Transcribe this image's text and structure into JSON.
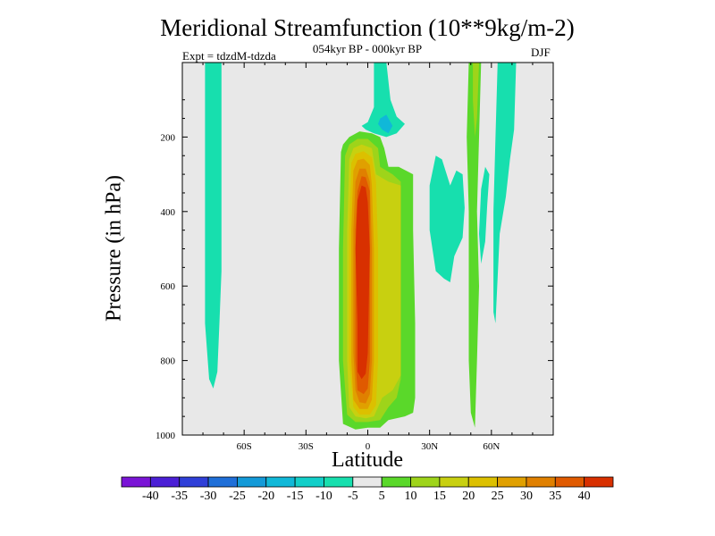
{
  "chart_data": {
    "type": "contour",
    "title": "Meridional Streamfunction (10**9kg/m-2)",
    "subtitle": "054kyr BP - 000kyr BP",
    "left_annotation": "Expt = tdzdM-tdzda",
    "right_annotation": "DJF",
    "xlabel": "Latitude",
    "ylabel": "Pressure (in hPa)",
    "xlim": [
      -90,
      90
    ],
    "ylim": [
      1000,
      0
    ],
    "x_ticks": [
      {
        "value": -60,
        "label": "60S"
      },
      {
        "value": -30,
        "label": "30S"
      },
      {
        "value": 0,
        "label": "0"
      },
      {
        "value": 30,
        "label": "30N"
      },
      {
        "value": 60,
        "label": "60N"
      }
    ],
    "y_ticks": [
      {
        "value": 200,
        "label": "200"
      },
      {
        "value": 400,
        "label": "400"
      },
      {
        "value": 600,
        "label": "600"
      },
      {
        "value": 800,
        "label": "800"
      },
      {
        "value": 1000,
        "label": "1000"
      }
    ],
    "background_color": "#e8e8e8",
    "colorbar": {
      "levels": [
        -40,
        -35,
        -30,
        -25,
        -20,
        -15,
        -10,
        -5,
        5,
        10,
        15,
        20,
        25,
        30,
        35,
        40
      ],
      "labels": [
        "-40",
        "-35",
        "-30",
        "-25",
        "-20",
        "-15",
        "-10",
        "-5",
        "5",
        "10",
        "15",
        "20",
        "25",
        "30",
        "35",
        "40"
      ],
      "colors": [
        "#7a14d6",
        "#4b1fd6",
        "#2f3fd8",
        "#1f6fd8",
        "#139ad8",
        "#10b8d8",
        "#12cfc9",
        "#17dfae",
        "#e8e8e8",
        "#5ad82a",
        "#9ed41a",
        "#c8d010",
        "#dcc000",
        "#e0a000",
        "#e08000",
        "#e05a00",
        "#d83000"
      ]
    },
    "regions": [
      {
        "name": "sh-high-lat-negative-band",
        "class": "-10 to -5",
        "color": "#17dfae",
        "points": [
          [
            -79,
            0
          ],
          [
            -71,
            0
          ],
          [
            -71,
            560
          ],
          [
            -72,
            700
          ],
          [
            -73,
            830
          ],
          [
            -75,
            875
          ],
          [
            -77,
            850
          ],
          [
            -79,
            700
          ],
          [
            -79,
            400
          ]
        ]
      },
      {
        "name": "upper-trop-negative-tongue",
        "class": "-10 to -5",
        "color": "#17dfae",
        "points": [
          [
            3,
            0
          ],
          [
            9,
            0
          ],
          [
            11,
            100
          ],
          [
            14,
            145
          ],
          [
            18,
            165
          ],
          [
            14,
            190
          ],
          [
            9,
            200
          ],
          [
            3,
            190
          ],
          [
            -1,
            180
          ],
          [
            -3,
            170
          ],
          [
            0,
            160
          ],
          [
            3,
            120
          ],
          [
            3,
            40
          ]
        ]
      },
      {
        "name": "upper-trop-negative-core",
        "class": "-15 to -10",
        "color": "#10b8d8",
        "points": [
          [
            6,
            150
          ],
          [
            9,
            140
          ],
          [
            12,
            170
          ],
          [
            10,
            190
          ],
          [
            7,
            180
          ],
          [
            5,
            165
          ]
        ]
      },
      {
        "name": "subtropical-negative-patch",
        "class": "-10 to -5",
        "color": "#17dfae",
        "points": [
          [
            30,
            330
          ],
          [
            33,
            250
          ],
          [
            36,
            260
          ],
          [
            40,
            330
          ],
          [
            43,
            290
          ],
          [
            46,
            300
          ],
          [
            47,
            390
          ],
          [
            46,
            470
          ],
          [
            42,
            520
          ],
          [
            40,
            590
          ],
          [
            37,
            580
          ],
          [
            33,
            560
          ],
          [
            30,
            450
          ]
        ]
      },
      {
        "name": "midlat-negative-strip",
        "class": "-10 to -5",
        "color": "#17dfae",
        "points": [
          [
            57,
            280
          ],
          [
            59,
            300
          ],
          [
            58,
            380
          ],
          [
            57,
            480
          ],
          [
            55,
            540
          ],
          [
            54,
            460
          ],
          [
            55,
            340
          ]
        ]
      },
      {
        "name": "nh-high-lat-negative-band",
        "class": "-10 to -5",
        "color": "#17dfae",
        "points": [
          [
            63,
            0
          ],
          [
            72,
            0
          ],
          [
            71,
            180
          ],
          [
            69,
            260
          ],
          [
            67,
            360
          ],
          [
            64,
            460
          ],
          [
            62,
            700
          ],
          [
            61,
            670
          ],
          [
            61,
            400
          ],
          [
            62,
            200
          ]
        ]
      },
      {
        "name": "nh-positive-strip",
        "class": "5 to 10",
        "color": "#5ad82a",
        "points": [
          [
            49,
            0
          ],
          [
            55,
            0
          ],
          [
            54,
            200
          ],
          [
            53,
            400
          ],
          [
            54,
            600
          ],
          [
            53,
            800
          ],
          [
            52,
            980
          ],
          [
            50,
            940
          ],
          [
            49,
            800
          ],
          [
            49,
            400
          ],
          [
            48,
            200
          ]
        ]
      },
      {
        "name": "nh-positive-strip-inner",
        "class": "10 to 15",
        "color": "#9ed41a",
        "points": [
          [
            51,
            0
          ],
          [
            54,
            0
          ],
          [
            53,
            150
          ],
          [
            52,
            200
          ],
          [
            51,
            100
          ]
        ]
      },
      {
        "name": "hadley-cell",
        "class": "5 to 10",
        "color": "#5ad82a",
        "points": [
          [
            -13,
            240
          ],
          [
            -12,
            220
          ],
          [
            -9,
            200
          ],
          [
            -4,
            185
          ],
          [
            2,
            190
          ],
          [
            6,
            200
          ],
          [
            8,
            230
          ],
          [
            10,
            280
          ],
          [
            15,
            280
          ],
          [
            22,
            300
          ],
          [
            22,
            450
          ],
          [
            23,
            700
          ],
          [
            23,
            900
          ],
          [
            22,
            940
          ],
          [
            18,
            950
          ],
          [
            10,
            960
          ],
          [
            6,
            980
          ],
          [
            0,
            980
          ],
          [
            -6,
            985
          ],
          [
            -12,
            970
          ],
          [
            -14,
            800
          ],
          [
            -14,
            500
          ]
        ]
      },
      {
        "name": "hadley-cell",
        "class": "10 to 15",
        "color": "#9ed41a",
        "points": [
          [
            -11,
            250
          ],
          [
            -9,
            220
          ],
          [
            -5,
            205
          ],
          [
            0,
            205
          ],
          [
            5,
            230
          ],
          [
            6,
            280
          ],
          [
            12,
            300
          ],
          [
            16,
            320
          ],
          [
            16,
            600
          ],
          [
            16,
            850
          ],
          [
            14,
            900
          ],
          [
            10,
            925
          ],
          [
            6,
            960
          ],
          [
            0,
            965
          ],
          [
            -6,
            965
          ],
          [
            -10,
            945
          ],
          [
            -12,
            800
          ],
          [
            -12,
            500
          ]
        ]
      },
      {
        "name": "hadley-cell",
        "class": "15 to 20",
        "color": "#c8d010",
        "points": [
          [
            -9,
            260
          ],
          [
            -7,
            230
          ],
          [
            -3,
            220
          ],
          [
            2,
            230
          ],
          [
            4,
            300
          ],
          [
            10,
            320
          ],
          [
            16,
            330
          ],
          [
            16,
            600
          ],
          [
            16,
            840
          ],
          [
            12,
            880
          ],
          [
            7,
            900
          ],
          [
            3,
            950
          ],
          [
            -1,
            955
          ],
          [
            -6,
            950
          ],
          [
            -9,
            925
          ],
          [
            -10,
            800
          ],
          [
            -10,
            450
          ]
        ]
      },
      {
        "name": "hadley-cell",
        "class": "20 to 25",
        "color": "#dcc000",
        "points": [
          [
            -8,
            270
          ],
          [
            -6,
            245
          ],
          [
            -2,
            238
          ],
          [
            2,
            255
          ],
          [
            4,
            320
          ],
          [
            5,
            500
          ],
          [
            5,
            800
          ],
          [
            4,
            920
          ],
          [
            1,
            945
          ],
          [
            -4,
            945
          ],
          [
            -7,
            925
          ],
          [
            -9,
            800
          ],
          [
            -9,
            450
          ]
        ]
      },
      {
        "name": "hadley-cell",
        "class": "25 to 30",
        "color": "#e0a000",
        "points": [
          [
            -7,
            290
          ],
          [
            -5,
            262
          ],
          [
            -2,
            258
          ],
          [
            1,
            275
          ],
          [
            2,
            330
          ],
          [
            3,
            500
          ],
          [
            3,
            800
          ],
          [
            2,
            905
          ],
          [
            0,
            930
          ],
          [
            -4,
            930
          ],
          [
            -7,
            905
          ],
          [
            -8,
            800
          ],
          [
            -8,
            450
          ]
        ]
      },
      {
        "name": "hadley-cell",
        "class": "30 to 35",
        "color": "#e08000",
        "points": [
          [
            -6,
            320
          ],
          [
            -4,
            285
          ],
          [
            -1,
            285
          ],
          [
            1,
            320
          ],
          [
            2,
            500
          ],
          [
            2,
            800
          ],
          [
            1,
            890
          ],
          [
            -1,
            915
          ],
          [
            -4,
            912
          ],
          [
            -6,
            880
          ],
          [
            -7,
            780
          ],
          [
            -7,
            450
          ]
        ]
      },
      {
        "name": "hadley-cell",
        "class": "35 to 40",
        "color": "#e05a00",
        "points": [
          [
            -5,
            345
          ],
          [
            -3,
            305
          ],
          [
            -1,
            308
          ],
          [
            1,
            345
          ],
          [
            1,
            500
          ],
          [
            1,
            800
          ],
          [
            0,
            875
          ],
          [
            -2,
            890
          ],
          [
            -5,
            880
          ],
          [
            -6,
            800
          ],
          [
            -6,
            450
          ]
        ]
      },
      {
        "name": "hadley-cell",
        "class": "> 40",
        "color": "#d83000",
        "points": [
          [
            -5,
            370
          ],
          [
            -3,
            330
          ],
          [
            -1,
            335
          ],
          [
            0,
            375
          ],
          [
            1,
            500
          ],
          [
            0,
            780
          ],
          [
            -1,
            835
          ],
          [
            -3,
            850
          ],
          [
            -5,
            830
          ],
          [
            -5,
            700
          ],
          [
            -6,
            500
          ]
        ]
      }
    ]
  }
}
